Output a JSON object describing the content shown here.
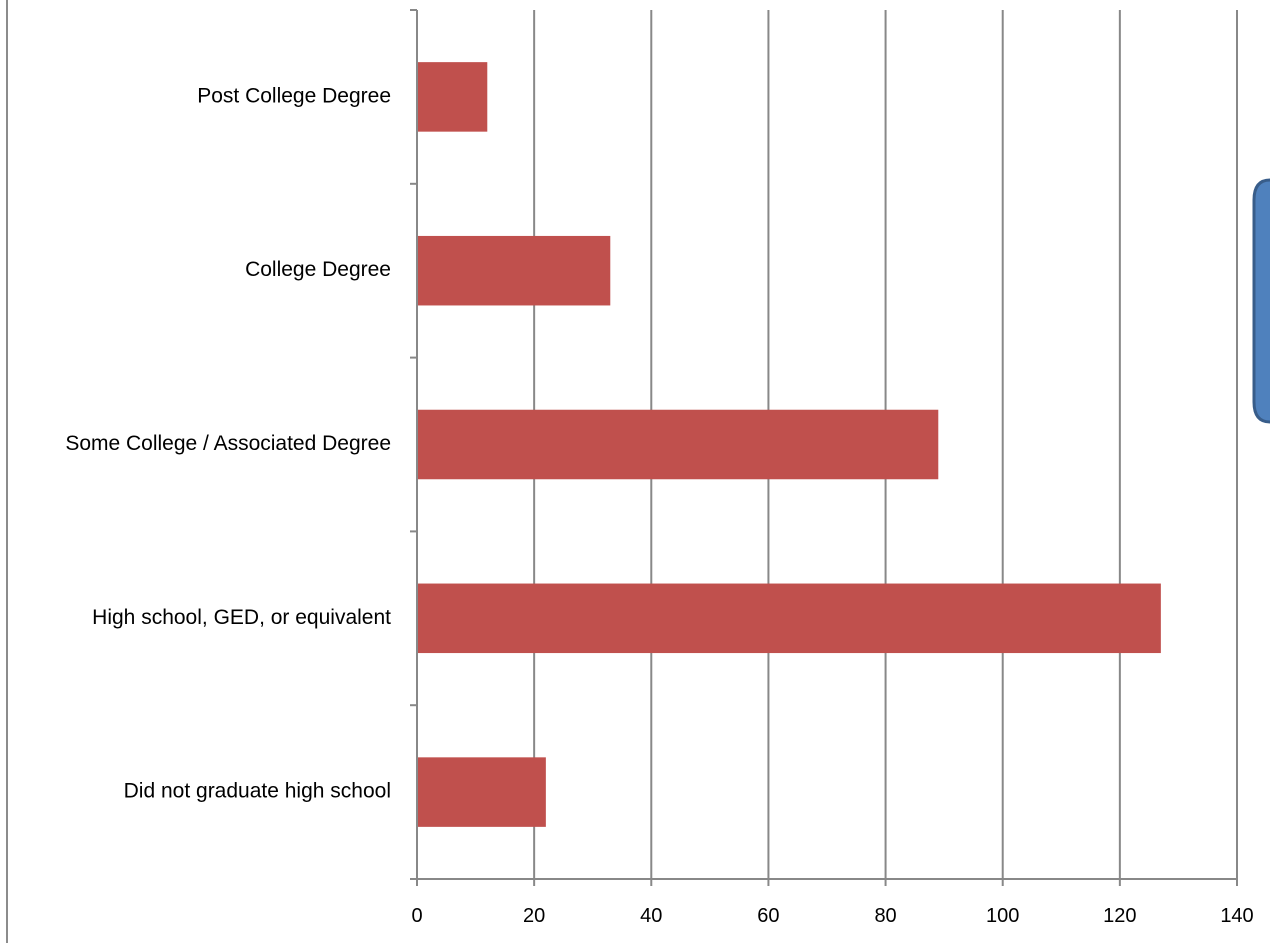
{
  "chart_data": {
    "type": "bar",
    "orientation": "horizontal",
    "categories": [
      "Post College Degree",
      "College Degree",
      "Some College / Associated Degree",
      "High school, GED, or equivalent",
      "Did not graduate high school"
    ],
    "values": [
      12,
      33,
      89,
      127,
      22
    ],
    "title": "",
    "xlabel": "",
    "ylabel": "",
    "xlim": [
      0,
      140
    ],
    "xticks": [
      0,
      20,
      40,
      60,
      80,
      100,
      120,
      140
    ],
    "xtick_labels": [
      "0",
      "20",
      "40",
      "60",
      "80",
      "100",
      "120",
      "140"
    ],
    "grid": "vertical major gridlines",
    "legend": "none",
    "bar_color": "#C0504D",
    "grid_color": "#888888",
    "axis_color": "#888888"
  },
  "decorations": {
    "callout_fill": "#4F81BD",
    "callout_border": "#385D8A"
  }
}
